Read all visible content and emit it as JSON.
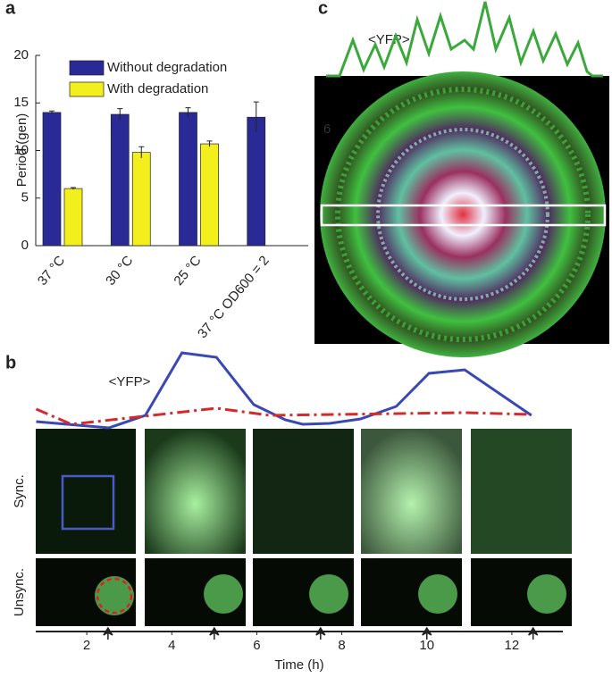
{
  "chart_data": [
    {
      "type": "bar",
      "panel": "a",
      "y_label": "Period (gen)",
      "categories": [
        "37 °C",
        "30 °C",
        "25 °C",
        "37 °C OD600 = 2"
      ],
      "series": [
        {
          "name": "Without degradation",
          "color": "#2a2a96",
          "values": [
            14.0,
            13.8,
            14.0,
            13.5
          ],
          "errors": [
            0.15,
            0.6,
            0.5,
            1.6
          ]
        },
        {
          "name": "With degradation",
          "color": "#f2ef1c",
          "values": [
            6.0,
            9.8,
            10.7,
            null
          ],
          "errors": [
            0.1,
            0.6,
            0.3,
            null
          ]
        }
      ],
      "ylim": [
        0,
        20
      ],
      "yticks": [
        0,
        5,
        10,
        15,
        20
      ]
    },
    {
      "type": "line",
      "panel": "b",
      "annotation": "<YFP>",
      "x_label": "Time (h)",
      "row_labels": [
        "Sync.",
        "Unsync."
      ],
      "series": [
        {
          "color": "#3a48b4",
          "x": [
            0.81,
            2.52,
            3.38,
            4.24,
            5.05,
            5.93,
            6.67,
            7.08,
            7.71,
            8.44,
            9.28,
            10.05,
            10.89,
            12.46
          ],
          "values": [
            8,
            1,
            15,
            85,
            80,
            27,
            10,
            5,
            6,
            11,
            25,
            62,
            66,
            15
          ]
        },
        {
          "color": "#d42a2a",
          "dashed": true,
          "x": [
            0.81,
            1.64,
            5.05,
            6.3,
            10.89,
            12.46
          ],
          "values": [
            22,
            5,
            23,
            15,
            18,
            16
          ]
        }
      ],
      "arrows": [
        2.5,
        5.0,
        7.5,
        10.0,
        12.5
      ],
      "xlim": [
        0.8,
        13.2
      ],
      "xticks": [
        2,
        4,
        6,
        8,
        10,
        12
      ],
      "ylim": [
        0,
        100
      ]
    },
    {
      "type": "line",
      "panel": "c",
      "annotation": "<YFP>",
      "faint_label": "6",
      "series": [
        {
          "color": "#3aa83a",
          "x": [
            0,
            15,
            30,
            42,
            55,
            65,
            78,
            90,
            102,
            115,
            128,
            140,
            155,
            165,
            178,
            190,
            205,
            218,
            232,
            243,
            257,
            270,
            282,
            292,
            298,
            310
          ],
          "values": [
            5,
            5,
            45,
            12,
            40,
            15,
            50,
            20,
            68,
            30,
            72,
            35,
            45,
            35,
            88,
            35,
            70,
            20,
            55,
            22,
            52,
            18,
            42,
            10,
            5,
            5
          ]
        }
      ],
      "xlim": [
        0,
        310
      ],
      "ylim": [
        0,
        90
      ]
    }
  ]
}
